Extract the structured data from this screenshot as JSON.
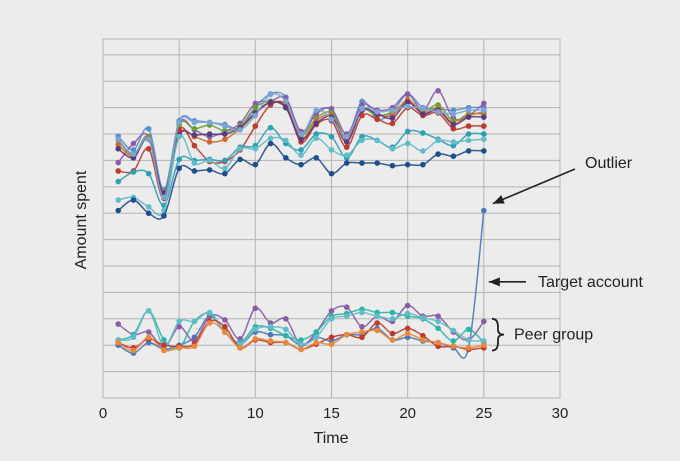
{
  "chart_data": {
    "type": "line",
    "title": "",
    "xlabel": "Time",
    "ylabel": "Amount spent",
    "xlim": [
      0,
      30
    ],
    "ylim": [
      -1.0,
      5.8
    ],
    "x_ticks": [
      0,
      5,
      10,
      15,
      20,
      25,
      30
    ],
    "y_grid": [
      -0.5,
      0,
      0.5,
      1,
      1.5,
      2,
      2.5,
      3,
      3.5,
      4,
      4.5,
      5,
      5.5
    ],
    "y_tick_labels_shown": false,
    "grid": true,
    "x": [
      1,
      2,
      3,
      4,
      5,
      6,
      7,
      8,
      9,
      10,
      11,
      12,
      13,
      14,
      15,
      16,
      17,
      18,
      19,
      20,
      21,
      22,
      23,
      24,
      25
    ],
    "series": [
      {
        "color": "#5a8fd0",
        "values": [
          3.96,
          3.7,
          4.1,
          2.94,
          4.25,
          4.25,
          4.22,
          4.18,
          4.1,
          4.5,
          4.76,
          4.7,
          4.0,
          4.42,
          4.45,
          3.92,
          4.62,
          4.28,
          4.42,
          4.75,
          4.5,
          4.48,
          4.45,
          4.5,
          4.5
        ]
      },
      {
        "color": "#8a5ca8",
        "values": [
          3.46,
          3.82,
          3.95,
          2.85,
          4.2,
          4.08,
          3.95,
          4.05,
          4.2,
          4.58,
          4.62,
          4.68,
          4.05,
          4.38,
          4.48,
          4.0,
          4.55,
          4.45,
          4.5,
          4.76,
          4.45,
          4.82,
          4.3,
          4.35,
          4.58
        ]
      },
      {
        "color": "#6b9e3a",
        "values": [
          3.88,
          3.6,
          3.95,
          2.9,
          4.17,
          4.1,
          4.17,
          4.06,
          4.15,
          4.5,
          4.62,
          4.5,
          3.98,
          4.3,
          4.4,
          3.92,
          4.45,
          4.35,
          4.42,
          4.6,
          4.42,
          4.55,
          4.25,
          4.38,
          4.38
        ]
      },
      {
        "color": "#d06b2b",
        "values": [
          3.8,
          3.58,
          3.92,
          2.86,
          4.0,
          3.95,
          3.85,
          3.9,
          4.1,
          4.38,
          4.6,
          4.52,
          3.92,
          4.25,
          4.35,
          3.92,
          4.45,
          4.38,
          4.35,
          4.65,
          4.4,
          4.48,
          4.2,
          4.35,
          4.42
        ]
      },
      {
        "color": "#c0392b",
        "values": [
          3.3,
          3.3,
          3.72,
          2.78,
          4.08,
          3.78,
          3.48,
          3.48,
          3.7,
          4.15,
          4.55,
          4.55,
          3.85,
          4.18,
          4.25,
          3.75,
          4.35,
          4.28,
          4.2,
          4.5,
          4.35,
          4.4,
          4.1,
          4.15,
          4.15
        ]
      },
      {
        "color": "#5c3a80",
        "values": [
          3.72,
          3.55,
          3.9,
          2.88,
          3.98,
          3.98,
          4.0,
          4.0,
          4.12,
          4.4,
          4.6,
          4.5,
          3.9,
          4.2,
          4.32,
          3.85,
          4.45,
          4.38,
          4.3,
          4.6,
          4.38,
          4.45,
          4.18,
          4.32,
          4.32
        ]
      },
      {
        "color": "#7aa6d6",
        "values": [
          3.9,
          3.62,
          3.9,
          2.8,
          4.22,
          4.22,
          4.22,
          4.15,
          4.08,
          4.35,
          4.75,
          4.62,
          4.0,
          4.45,
          4.28,
          3.95,
          4.48,
          4.42,
          4.45,
          4.52,
          4.48,
          4.42,
          4.38,
          4.45,
          4.45
        ]
      },
      {
        "color": "#2b9fb5",
        "values": [
          3.1,
          3.28,
          3.25,
          2.65,
          3.52,
          3.5,
          3.52,
          3.5,
          3.75,
          3.78,
          4.12,
          3.82,
          3.7,
          4.0,
          3.95,
          3.55,
          3.95,
          3.88,
          3.75,
          4.05,
          4.02,
          3.9,
          3.78,
          4.0,
          4.0
        ]
      },
      {
        "color": "#5fbcc8",
        "values": [
          2.75,
          2.8,
          2.62,
          2.55,
          3.95,
          3.45,
          3.5,
          3.35,
          3.72,
          3.72,
          3.92,
          3.88,
          3.6,
          3.92,
          3.7,
          3.6,
          3.88,
          3.88,
          3.72,
          3.82,
          3.68,
          3.88,
          3.85,
          3.88,
          3.9
        ]
      },
      {
        "color": "#1f4e8c",
        "values": [
          2.55,
          2.75,
          2.5,
          2.45,
          3.35,
          3.3,
          3.32,
          3.25,
          3.52,
          3.42,
          3.82,
          3.55,
          3.42,
          3.55,
          3.25,
          3.45,
          3.45,
          3.45,
          3.4,
          3.42,
          3.42,
          3.62,
          3.58,
          3.68,
          3.68
        ]
      },
      {
        "color": "#4a78b8",
        "values": [
          0.0,
          -0.15,
          0.05,
          -0.08,
          0.0,
          0.15,
          0.55,
          0.25,
          0.02,
          0.25,
          0.2,
          0.18,
          0.0,
          0.15,
          0.08,
          0.2,
          0.2,
          0.32,
          0.1,
          0.15,
          0.08,
          0.05,
          -0.05,
          -0.05,
          2.55
        ]
      },
      {
        "color": "#8a5ca8",
        "values": [
          0.4,
          0.2,
          0.25,
          -0.05,
          0.35,
          0.08,
          0.55,
          0.48,
          0.12,
          0.7,
          0.42,
          0.5,
          0.0,
          0.25,
          0.65,
          0.72,
          0.35,
          0.55,
          0.45,
          0.75,
          0.55,
          0.55,
          0.25,
          0.1,
          0.45
        ]
      },
      {
        "color": "#2bb5a8",
        "values": [
          0.1,
          0.2,
          0.65,
          0.1,
          -0.05,
          0.45,
          0.6,
          0.25,
          0.05,
          0.35,
          0.32,
          0.18,
          0.1,
          0.25,
          0.55,
          0.6,
          0.68,
          0.62,
          0.62,
          0.55,
          0.5,
          0.32,
          0.08,
          0.3,
          0.05
        ]
      },
      {
        "color": "#5fbcc8",
        "values": [
          0.1,
          0.15,
          0.65,
          -0.02,
          0.45,
          0.45,
          0.62,
          0.25,
          0.02,
          0.3,
          0.35,
          0.3,
          0.02,
          0.15,
          0.5,
          0.55,
          0.62,
          0.55,
          0.5,
          0.6,
          0.52,
          0.45,
          0.28,
          0.1,
          0.08
        ]
      },
      {
        "color": "#c0392b",
        "values": [
          0.05,
          -0.05,
          0.12,
          0.0,
          -0.02,
          0.02,
          0.45,
          0.35,
          -0.05,
          0.1,
          0.05,
          0.05,
          -0.08,
          0.02,
          0.15,
          0.2,
          0.15,
          0.42,
          0.22,
          0.32,
          0.18,
          -0.02,
          -0.02,
          -0.08,
          -0.05
        ]
      },
      {
        "color": "#e8883a",
        "values": [
          0.05,
          -0.1,
          0.15,
          -0.1,
          -0.05,
          -0.02,
          0.42,
          0.25,
          -0.05,
          0.12,
          0.08,
          0.05,
          -0.08,
          0.05,
          0.02,
          0.2,
          0.25,
          0.28,
          0.1,
          0.22,
          0.1,
          0.05,
          -0.02,
          -0.05,
          0.0
        ]
      }
    ],
    "annotations": [
      {
        "text": "Outlier",
        "target": {
          "x": 25,
          "y": 2.55
        }
      },
      {
        "text": "Target account",
        "target": {
          "x": 25,
          "y": 1.2
        }
      },
      {
        "text": "Peer group",
        "bracket_y": [
          -0.1,
          0.5
        ]
      }
    ]
  },
  "colors": {
    "background": "#ececec",
    "grid": "#b4b4b4",
    "axis_text": "#222222",
    "annotation": "#222222"
  }
}
